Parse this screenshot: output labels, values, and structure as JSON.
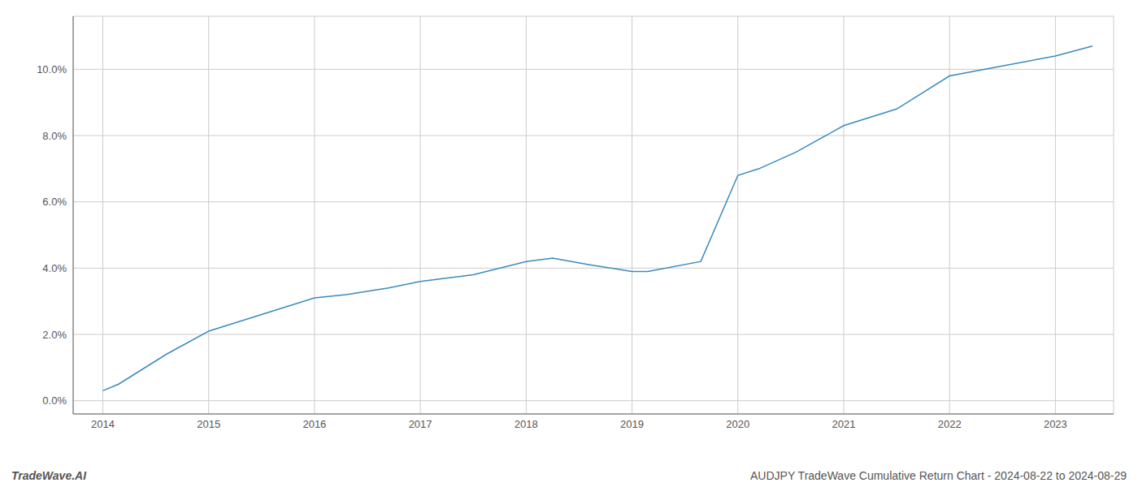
{
  "chart_data": {
    "type": "line",
    "title": "AUDJPY TradeWave Cumulative Return Chart - 2024-08-22 to 2024-08-29",
    "annotations": [
      {
        "text": "TradeWave.AI"
      }
    ],
    "x": [
      2014.0,
      2014.15,
      2014.6,
      2015.0,
      2015.5,
      2016.0,
      2016.3,
      2016.7,
      2017.0,
      2017.5,
      2018.0,
      2018.25,
      2018.6,
      2019.0,
      2019.15,
      2019.65,
      2020.0,
      2020.2,
      2020.55,
      2021.0,
      2021.5,
      2022.0,
      2022.5,
      2023.0,
      2023.35
    ],
    "values": [
      0.003,
      0.005,
      0.014,
      0.021,
      0.026,
      0.031,
      0.032,
      0.034,
      0.036,
      0.038,
      0.042,
      0.043,
      0.041,
      0.039,
      0.039,
      0.042,
      0.068,
      0.07,
      0.075,
      0.083,
      0.088,
      0.098,
      0.101,
      0.104,
      0.107
    ],
    "color": "#3a8abf",
    "xlim": [
      2013.72,
      2023.55
    ],
    "ylim": [
      -0.004,
      0.116
    ],
    "xticks": [
      2014,
      2015,
      2016,
      2017,
      2018,
      2019,
      2020,
      2021,
      2022,
      2023
    ],
    "yticks": [
      {
        "value": 0.0,
        "label": "0.0%"
      },
      {
        "value": 0.02,
        "label": "2.0%"
      },
      {
        "value": 0.04,
        "label": "4.0%"
      },
      {
        "value": 0.06,
        "label": "6.0%"
      },
      {
        "value": 0.08,
        "label": "8.0%"
      },
      {
        "value": 0.1,
        "label": "10.0%"
      }
    ],
    "grid": true
  }
}
